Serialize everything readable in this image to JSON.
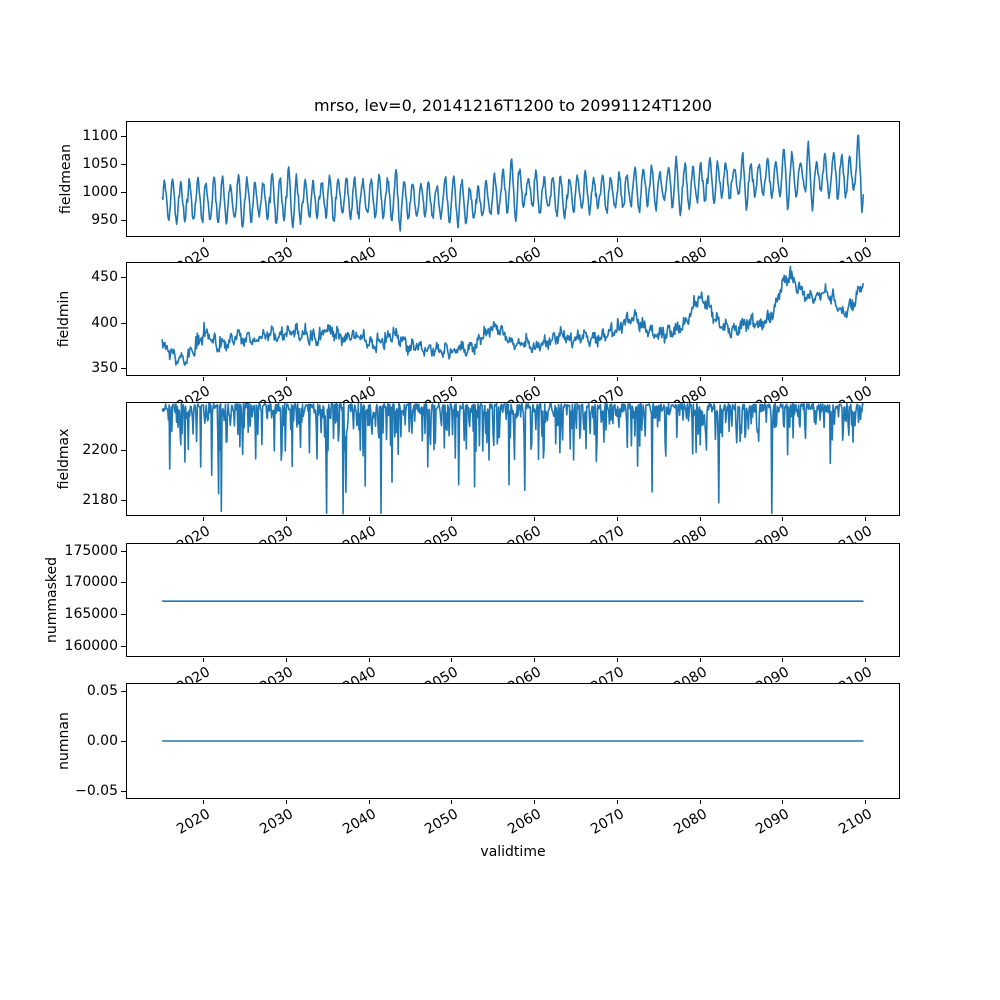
{
  "title": "mrso, lev=0, 20141216T1200 to 20991124T1200",
  "xlabel": "validtime",
  "line_color": "#1f77b4",
  "x_axis": {
    "tick_labels": [
      "2020",
      "2030",
      "2040",
      "2050",
      "2060",
      "2070",
      "2080",
      "2090",
      "2100"
    ],
    "tick_values": [
      2020,
      2030,
      2040,
      2050,
      2060,
      2070,
      2080,
      2090,
      2100
    ],
    "range": [
      2010.7,
      2104.2
    ],
    "data_start": 2014.96,
    "data_end": 2099.9
  },
  "chart_data": [
    {
      "name": "fieldmean",
      "type": "line",
      "ylabel": "fieldmean",
      "ytick_labels": [
        "950",
        "1000",
        "1050",
        "1100"
      ],
      "ytick_values": [
        950,
        1000,
        1050,
        1100
      ],
      "ylim": [
        920,
        1126
      ],
      "gen": "seasonal",
      "seed": 7,
      "amp_base": 31,
      "amp_rand": 20,
      "boost": 27,
      "boost_prob": 0.12,
      "noise": 7,
      "trend": [
        [
          2015,
          985
        ],
        [
          2020,
          982
        ],
        [
          2025,
          984
        ],
        [
          2030,
          986
        ],
        [
          2035,
          988
        ],
        [
          2040,
          989
        ],
        [
          2045,
          985
        ],
        [
          2050,
          983
        ],
        [
          2053,
          979
        ],
        [
          2056,
          999
        ],
        [
          2058,
          1004
        ],
        [
          2060,
          999
        ],
        [
          2063,
          991
        ],
        [
          2066,
          998
        ],
        [
          2069,
          996
        ],
        [
          2072,
          1002
        ],
        [
          2074,
          1009
        ],
        [
          2077,
          1008
        ],
        [
          2080,
          1014
        ],
        [
          2083,
          1022
        ],
        [
          2085,
          1018
        ],
        [
          2088,
          1021
        ],
        [
          2090,
          1026
        ],
        [
          2092,
          1030
        ],
        [
          2094,
          1026
        ],
        [
          2096,
          1031
        ],
        [
          2098,
          1029
        ],
        [
          2100,
          1036
        ]
      ]
    },
    {
      "name": "fieldmin",
      "type": "line",
      "ylabel": "fieldmin",
      "ytick_labels": [
        "350",
        "400",
        "450"
      ],
      "ytick_values": [
        350,
        400,
        450
      ],
      "ylim": [
        341,
        467
      ],
      "gen": "jagged",
      "seed": 3,
      "noise": 6,
      "spike_prob": 0.15,
      "spike_amp": 8,
      "trend": [
        [
          2015,
          376
        ],
        [
          2016,
          366
        ],
        [
          2017,
          357
        ],
        [
          2018,
          359
        ],
        [
          2019,
          371
        ],
        [
          2020,
          386
        ],
        [
          2021,
          381
        ],
        [
          2022,
          373
        ],
        [
          2023,
          377
        ],
        [
          2024,
          384
        ],
        [
          2025,
          381
        ],
        [
          2026,
          379
        ],
        [
          2027,
          384
        ],
        [
          2028,
          388
        ],
        [
          2029,
          384
        ],
        [
          2030,
          387
        ],
        [
          2031,
          391
        ],
        [
          2032,
          385
        ],
        [
          2033,
          382
        ],
        [
          2034,
          381
        ],
        [
          2035,
          394
        ],
        [
          2036,
          384
        ],
        [
          2037,
          381
        ],
        [
          2038,
          384
        ],
        [
          2039,
          386
        ],
        [
          2040,
          378
        ],
        [
          2041,
          374
        ],
        [
          2042,
          379
        ],
        [
          2043,
          389
        ],
        [
          2044,
          377
        ],
        [
          2045,
          371
        ],
        [
          2046,
          374
        ],
        [
          2047,
          371
        ],
        [
          2048,
          369
        ],
        [
          2049,
          367
        ],
        [
          2050,
          369
        ],
        [
          2051,
          371
        ],
        [
          2052,
          367
        ],
        [
          2053,
          374
        ],
        [
          2054,
          384
        ],
        [
          2055,
          397
        ],
        [
          2056,
          391
        ],
        [
          2057,
          379
        ],
        [
          2058,
          373
        ],
        [
          2059,
          376
        ],
        [
          2060,
          372
        ],
        [
          2061,
          376
        ],
        [
          2062,
          380
        ],
        [
          2063,
          384
        ],
        [
          2064,
          381
        ],
        [
          2065,
          379
        ],
        [
          2066,
          383
        ],
        [
          2067,
          379
        ],
        [
          2068,
          384
        ],
        [
          2069,
          387
        ],
        [
          2070,
          390
        ],
        [
          2071,
          401
        ],
        [
          2072,
          407
        ],
        [
          2073,
          397
        ],
        [
          2074,
          391
        ],
        [
          2075,
          385
        ],
        [
          2076,
          387
        ],
        [
          2077,
          391
        ],
        [
          2078,
          397
        ],
        [
          2079,
          409
        ],
        [
          2080,
          427
        ],
        [
          2081,
          421
        ],
        [
          2082,
          404
        ],
        [
          2083,
          395
        ],
        [
          2084,
          391
        ],
        [
          2085,
          395
        ],
        [
          2086,
          399
        ],
        [
          2087,
          397
        ],
        [
          2088,
          401
        ],
        [
          2089,
          411
        ],
        [
          2090,
          441
        ],
        [
          2091,
          453
        ],
        [
          2092,
          439
        ],
        [
          2093,
          431
        ],
        [
          2094,
          427
        ],
        [
          2095,
          433
        ],
        [
          2096,
          427
        ],
        [
          2097,
          411
        ],
        [
          2098,
          414
        ],
        [
          2099,
          427
        ],
        [
          2100,
          446
        ]
      ]
    },
    {
      "name": "fieldmax",
      "type": "line",
      "ylabel": "fieldmax",
      "ytick_labels": [
        "2180",
        "2200"
      ],
      "ytick_values": [
        2180,
        2200
      ],
      "ylim": [
        2173.5,
        2219.5
      ],
      "gen": "spiketop",
      "seed": 11,
      "cap": 2219.3,
      "base_wander": 3.5,
      "spike_lambda": 8,
      "min_value": 2174.2,
      "deep_spikes": [
        [
          2022.1,
          2175
        ],
        [
          2029.4,
          2196
        ],
        [
          2036.9,
          2174
        ],
        [
          2042.8,
          2187
        ],
        [
          2050.9,
          2186
        ],
        [
          2074.3,
          2183
        ],
        [
          2082.4,
          2178.5
        ]
      ]
    },
    {
      "name": "nummasked",
      "type": "line",
      "ylabel": "nummasked",
      "ytick_labels": [
        "160000",
        "165000",
        "170000",
        "175000"
      ],
      "ytick_values": [
        160000,
        165000,
        170000,
        175000
      ],
      "ylim": [
        158200,
        176200
      ],
      "gen": "const",
      "value": 167000
    },
    {
      "name": "numnan",
      "type": "line",
      "ylabel": "numnan",
      "ytick_labels": [
        "−0.05",
        "0.00",
        "0.05"
      ],
      "ytick_values": [
        -0.05,
        0,
        0.05
      ],
      "ylim": [
        -0.0575,
        0.0575
      ],
      "gen": "const",
      "value": 0
    }
  ]
}
